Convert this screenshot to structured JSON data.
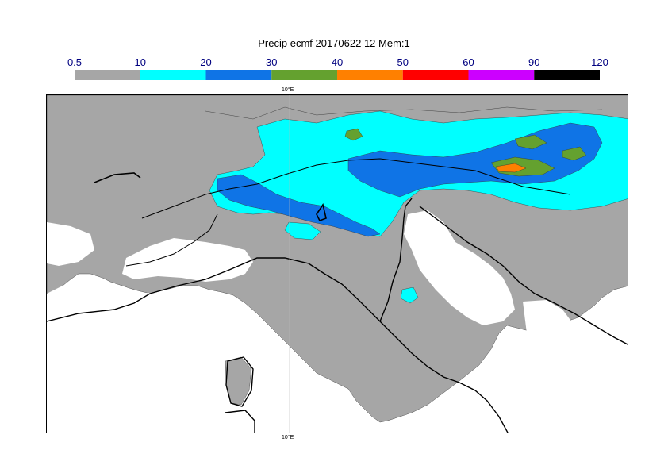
{
  "title": "Precip ecmf 20170622 12 Mem:1",
  "legend": {
    "ticks": [
      "0.5",
      "10",
      "20",
      "30",
      "40",
      "50",
      "60",
      "90",
      "120"
    ],
    "bins": [
      {
        "from": "0.5",
        "to": "10",
        "color": "#a6a6a6"
      },
      {
        "from": "10",
        "to": "20",
        "color": "#00ffff"
      },
      {
        "from": "20",
        "to": "30",
        "color": "#0f74e6"
      },
      {
        "from": "30",
        "to": "40",
        "color": "#64a12f"
      },
      {
        "from": "40",
        "to": "50",
        "color": "#ff8000"
      },
      {
        "from": "50",
        "to": "60",
        "color": "#ff0000"
      },
      {
        "from": "60",
        "to": "90",
        "color": "#cc00ff"
      },
      {
        "from": "90",
        "to": "120",
        "color": "#000000"
      }
    ],
    "tick_color": "#000080"
  },
  "map": {
    "meridian_label_top": "10°E",
    "meridian_label_bottom": "10°E",
    "land_background": "#ffffff",
    "coast_color": "#000000"
  }
}
